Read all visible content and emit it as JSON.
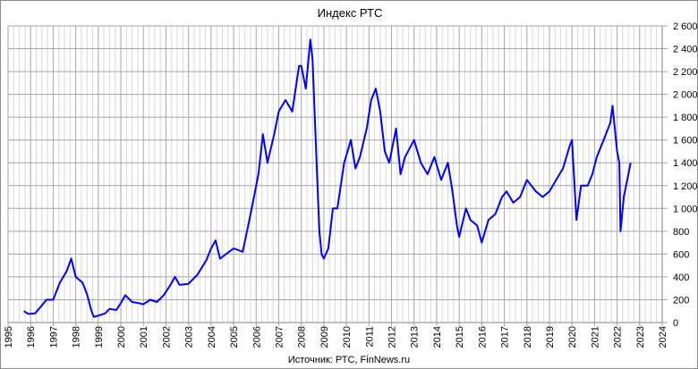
{
  "chart_data": {
    "type": "line",
    "title": "Индекс РТС",
    "source": "Источник: РТС, FinNews.ru",
    "xlabel": "",
    "ylabel": "",
    "xlim": [
      1995,
      2024
    ],
    "ylim": [
      0,
      2600
    ],
    "x_ticks": [
      "1995",
      "1996",
      "1997",
      "1998",
      "1999",
      "2000",
      "2001",
      "2002",
      "2003",
      "2004",
      "2005",
      "2006",
      "2007",
      "2008",
      "2009",
      "2010",
      "2011",
      "2012",
      "2013",
      "2014",
      "2015",
      "2016",
      "2017",
      "2018",
      "2019",
      "2020",
      "2021",
      "2022",
      "2023",
      "2024"
    ],
    "y_ticks": [
      "0",
      "200",
      "400",
      "600",
      "800",
      "1 000",
      "1 200",
      "1 400",
      "1 600",
      "1 800",
      "2 000",
      "2 200",
      "2 400",
      "2 600"
    ],
    "y_tick_values": [
      0,
      200,
      400,
      600,
      800,
      1000,
      1200,
      1400,
      1600,
      1800,
      2000,
      2200,
      2400,
      2600
    ],
    "grid": true,
    "line_color": "#0000ff",
    "series": [
      {
        "name": "Индекс РТС",
        "x": [
          1995.7,
          1995.9,
          1996.2,
          1996.5,
          1996.7,
          1997.0,
          1997.3,
          1997.6,
          1997.8,
          1997.9,
          1998.0,
          1998.3,
          1998.5,
          1998.7,
          1998.8,
          1999.0,
          1999.3,
          1999.5,
          1999.8,
          2000.0,
          2000.2,
          2000.5,
          2000.8,
          2001.0,
          2001.3,
          2001.6,
          2001.9,
          2002.2,
          2002.4,
          2002.6,
          2003.0,
          2003.4,
          2003.8,
          2004.0,
          2004.2,
          2004.4,
          2004.8,
          2005.0,
          2005.4,
          2005.7,
          2005.9,
          2006.1,
          2006.3,
          2006.5,
          2006.8,
          2007.0,
          2007.3,
          2007.6,
          2007.9,
          2008.0,
          2008.2,
          2008.4,
          2008.5,
          2008.6,
          2008.7,
          2008.8,
          2008.9,
          2009.0,
          2009.2,
          2009.4,
          2009.6,
          2009.9,
          2010.2,
          2010.4,
          2010.6,
          2010.9,
          2011.1,
          2011.3,
          2011.5,
          2011.7,
          2011.9,
          2012.2,
          2012.4,
          2012.6,
          2013.0,
          2013.3,
          2013.6,
          2013.9,
          2014.2,
          2014.5,
          2014.7,
          2014.9,
          2015.0,
          2015.3,
          2015.5,
          2015.8,
          2016.0,
          2016.3,
          2016.6,
          2016.9,
          2017.1,
          2017.4,
          2017.7,
          2018.0,
          2018.2,
          2018.4,
          2018.7,
          2019.0,
          2019.3,
          2019.6,
          2019.9,
          2020.0,
          2020.2,
          2020.4,
          2020.7,
          2020.9,
          2021.1,
          2021.4,
          2021.7,
          2021.8,
          2022.0,
          2022.1,
          2022.15,
          2022.3,
          2022.5,
          2022.6
        ],
        "values": [
          100,
          75,
          80,
          150,
          200,
          200,
          350,
          450,
          560,
          480,
          400,
          350,
          250,
          100,
          50,
          60,
          80,
          120,
          110,
          170,
          240,
          180,
          170,
          160,
          200,
          180,
          240,
          330,
          400,
          330,
          340,
          420,
          550,
          650,
          720,
          560,
          620,
          650,
          620,
          900,
          1100,
          1300,
          1650,
          1400,
          1650,
          1850,
          1950,
          1850,
          2250,
          2250,
          2050,
          2480,
          2300,
          1800,
          1300,
          800,
          600,
          560,
          650,
          1000,
          1000,
          1400,
          1600,
          1350,
          1450,
          1700,
          1950,
          2050,
          1850,
          1500,
          1400,
          1700,
          1300,
          1450,
          1600,
          1400,
          1300,
          1450,
          1250,
          1400,
          1150,
          850,
          750,
          1000,
          900,
          850,
          700,
          900,
          950,
          1100,
          1150,
          1050,
          1100,
          1250,
          1200,
          1150,
          1100,
          1150,
          1250,
          1350,
          1550,
          1600,
          900,
          1200,
          1200,
          1300,
          1450,
          1600,
          1750,
          1900,
          1500,
          1400,
          800,
          1100,
          1300,
          1400
        ]
      }
    ]
  }
}
